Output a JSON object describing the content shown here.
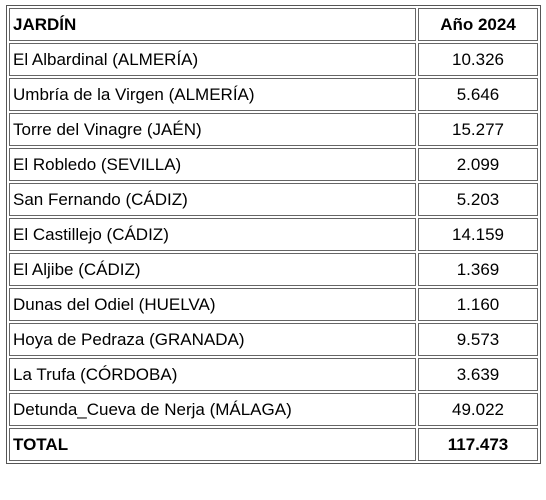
{
  "table": {
    "header": {
      "name": "JARDÍN",
      "year": "Año 2024"
    },
    "rows": [
      {
        "name": "El Albardinal (ALMERÍA)",
        "value": "10.326"
      },
      {
        "name": "Umbría de la Virgen (ALMERÍA)",
        "value": "5.646"
      },
      {
        "name": "Torre del Vinagre (JAÉN)",
        "value": "15.277"
      },
      {
        "name": "El Robledo (SEVILLA)",
        "value": "2.099"
      },
      {
        "name": "San Fernando (CÁDIZ)",
        "value": "5.203"
      },
      {
        "name": "El Castillejo (CÁDIZ)",
        "value": "14.159"
      },
      {
        "name": "El Aljibe (CÁDIZ)",
        "value": "1.369"
      },
      {
        "name": "Dunas del Odiel (HUELVA)",
        "value": "1.160"
      },
      {
        "name": "Hoya de Pedraza (GRANADA)",
        "value": "9.573"
      },
      {
        "name": "La Trufa (CÓRDOBA)",
        "value": "3.639"
      },
      {
        "name": "Detunda_Cueva de Nerja (MÁLAGA)",
        "value": "49.022"
      }
    ],
    "total": {
      "name": "TOTAL",
      "value": "117.473"
    }
  }
}
